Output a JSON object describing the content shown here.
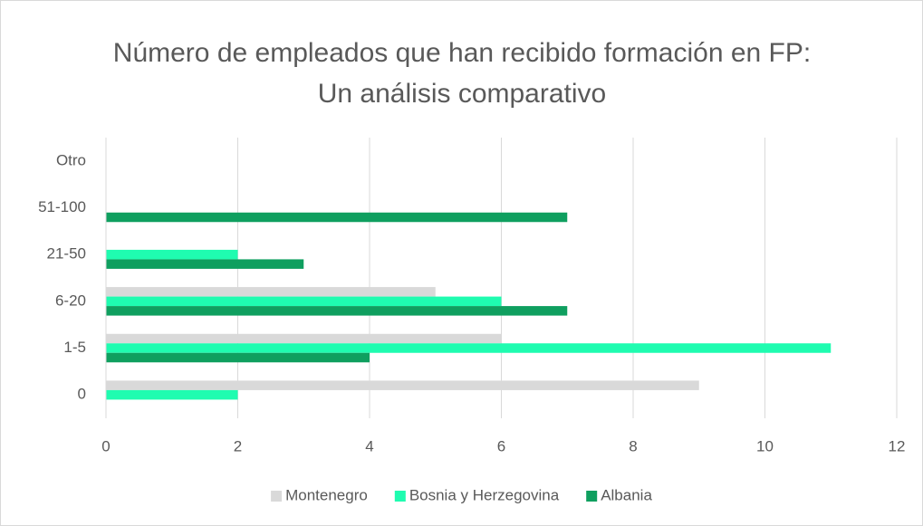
{
  "chart_data": {
    "type": "barh",
    "title": "Número de empleados que han recibido formación en FP: Un análisis comparativo",
    "categories": [
      "0",
      "1-5",
      "6-20",
      "21-50",
      "51-100",
      "Otro"
    ],
    "series": [
      {
        "name": "Montenegro",
        "color": "#d9d9d9",
        "values": [
          9,
          6,
          5,
          0,
          0,
          0
        ]
      },
      {
        "name": "Bosnia y Herzegovina",
        "color": "#1ffcb0",
        "values": [
          2,
          11,
          6,
          2,
          0,
          0
        ]
      },
      {
        "name": "Albania",
        "color": "#0f9f5f",
        "values": [
          0,
          4,
          7,
          3,
          7,
          0
        ]
      }
    ],
    "xlim": [
      0,
      12
    ],
    "xticks": [
      0,
      2,
      4,
      6,
      8,
      10,
      12
    ],
    "grid": true,
    "legend": "bottom"
  }
}
